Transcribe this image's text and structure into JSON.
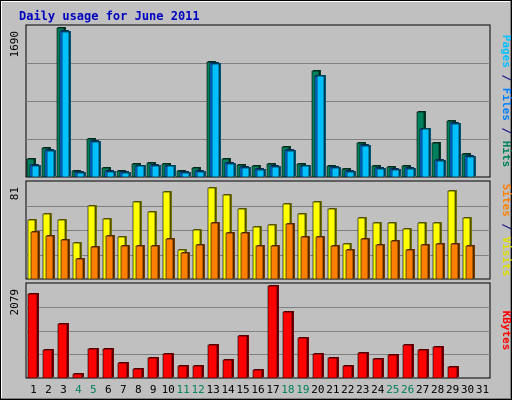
{
  "chart_data": {
    "type": "bar",
    "title": "Daily usage for June 2011",
    "categories": [
      "1",
      "2",
      "3",
      "4",
      "5",
      "6",
      "7",
      "8",
      "9",
      "10",
      "11",
      "12",
      "13",
      "14",
      "15",
      "16",
      "17",
      "18",
      "19",
      "20",
      "21",
      "22",
      "23",
      "24",
      "25",
      "26",
      "27",
      "28",
      "29",
      "30",
      "31"
    ],
    "weekend_days": [
      "4",
      "5",
      "11",
      "12",
      "18",
      "19",
      "25",
      "26"
    ],
    "panels": [
      {
        "id": "top",
        "ymax_label": "1690",
        "ylim": [
          0,
          1690
        ],
        "grid": true,
        "side_label": [
          {
            "text": "Pages",
            "color": "#00c0ff"
          },
          {
            "text": " / ",
            "color": "#000080"
          },
          {
            "text": "Files",
            "color": "#0080ff"
          },
          {
            "text": " / ",
            "color": "#000080"
          },
          {
            "text": "Hits",
            "color": "#00805c"
          }
        ],
        "series": [
          {
            "name": "Hits",
            "color": "#00805c",
            "values": [
              200,
              330,
              1690,
              70,
              430,
              100,
              70,
              150,
              160,
              150,
              70,
              100,
              1300,
              200,
              140,
              120,
              150,
              340,
              150,
              1200,
              130,
              90,
              380,
              130,
              110,
              120,
              740,
              380,
              640,
              260,
              0
            ]
          },
          {
            "name": "Files",
            "color": "#0080ff",
            "values": [
              140,
              310,
              1660,
              60,
              410,
              70,
              60,
              130,
              140,
              130,
              60,
              70,
              1290,
              160,
              110,
              90,
              120,
              310,
              130,
              1150,
              110,
              70,
              360,
              100,
              90,
              100,
              550,
              190,
              610,
              240,
              0
            ]
          },
          {
            "name": "Pages",
            "color": "#00c0ff",
            "values": [
              130,
              290,
              1650,
              50,
              400,
              60,
              50,
              120,
              130,
              120,
              50,
              60,
              1280,
              150,
              100,
              80,
              110,
              290,
              120,
              1140,
              100,
              60,
              350,
              90,
              80,
              90,
              540,
              180,
              600,
              230,
              0
            ]
          }
        ]
      },
      {
        "id": "middle",
        "ymax_label": "81",
        "ylim": [
          0,
          81
        ],
        "grid": true,
        "side_label": [
          {
            "text": "Sites",
            "color": "#ff8000"
          },
          {
            "text": " / ",
            "color": "#000080"
          },
          {
            "text": "Visits",
            "color": "#e0e000"
          }
        ],
        "series": [
          {
            "name": "Visits",
            "color": "#ffff00",
            "values": [
              50,
              55,
              50,
              31,
              62,
              51,
              36,
              66,
              57,
              74,
              25,
              42,
              78,
              72,
              60,
              44,
              46,
              64,
              55,
              66,
              60,
              30,
              52,
              48,
              48,
              43,
              48,
              48,
              75,
              52,
              0
            ]
          },
          {
            "name": "Sites",
            "color": "#ff8000",
            "values": [
              40,
              37,
              33,
              17,
              27,
              37,
              28,
              28,
              28,
              34,
              22,
              29,
              48,
              39,
              39,
              28,
              28,
              47,
              36,
              36,
              28,
              25,
              34,
              29,
              32,
              25,
              29,
              30,
              30,
              28,
              0
            ]
          }
        ]
      },
      {
        "id": "bottom",
        "ymax_label": "2079",
        "ylim": [
          0,
          2079
        ],
        "grid": true,
        "side_label": [
          {
            "text": "KBytes",
            "color": "#ff0000"
          }
        ],
        "series": [
          {
            "name": "KBytes",
            "color": "#ff0000",
            "values": [
              1900,
              640,
              1220,
              100,
              650,
              650,
              350,
              200,
              460,
              550,
              270,
              270,
              750,
              400,
              950,
              170,
              2079,
              1500,
              900,
              540,
              460,
              280,
              560,
              440,
              520,
              740,
              640,
              700,
              250,
              0,
              0
            ]
          }
        ]
      }
    ]
  }
}
